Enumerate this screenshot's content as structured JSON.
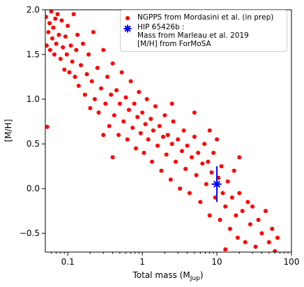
{
  "chart_data": {
    "type": "scatter",
    "ylabel": "[M/H]",
    "xlabel": [
      "Total mass (M",
      "Jup",
      ")"
    ],
    "xlim": [
      0.05,
      100
    ],
    "ylim": [
      -0.71,
      2.0
    ],
    "xscale": "log",
    "xticks": [
      0.1,
      1,
      10,
      100
    ],
    "xminorticks": [
      0.06,
      0.07,
      0.08,
      0.09,
      0.2,
      0.3,
      0.4,
      0.5,
      0.6,
      0.7,
      0.8,
      0.9,
      2,
      3,
      4,
      5,
      6,
      7,
      8,
      9,
      20,
      30,
      40,
      50,
      60,
      70,
      80,
      90
    ],
    "yticks": [
      {
        "value": -0.5,
        "label": "−0.5"
      },
      {
        "value": 0,
        "label": "0.0"
      },
      0.5,
      {
        "value": 1,
        "label": "1.0"
      },
      1.5,
      {
        "value": 2,
        "label": "2.0"
      }
    ],
    "legend": "upper right",
    "series": [
      {
        "name": "NGPPS from Mordasini et al. (in prep)",
        "color": "#ff0000",
        "marker": "dot",
        "x": [
          0.051,
          0.052,
          0.053,
          0.055,
          0.057,
          0.058,
          0.06,
          0.062,
          0.064,
          0.066,
          0.068,
          0.07,
          0.073,
          0.076,
          0.08,
          0.083,
          0.086,
          0.09,
          0.093,
          0.097,
          0.1,
          0.105,
          0.11,
          0.115,
          0.12,
          0.125,
          0.13,
          0.135,
          0.14,
          0.15,
          0.16,
          0.17,
          0.18,
          0.19,
          0.2,
          0.21,
          0.22,
          0.23,
          0.25,
          0.26,
          0.28,
          0.3,
          0.32,
          0.34,
          0.36,
          0.38,
          0.4,
          0.42,
          0.45,
          0.48,
          0.5,
          0.53,
          0.56,
          0.6,
          0.63,
          0.66,
          0.7,
          0.74,
          0.78,
          0.82,
          0.86,
          0.9,
          0.95,
          1.0,
          1.05,
          1.1,
          1.15,
          1.2,
          1.3,
          1.35,
          1.4,
          1.5,
          1.6,
          1.7,
          1.8,
          1.9,
          2.0,
          2.1,
          2.2,
          2.4,
          2.5,
          2.6,
          2.8,
          3.0,
          3.2,
          3.4,
          3.6,
          3.8,
          4.0,
          4.3,
          4.6,
          5.0,
          5.3,
          5.6,
          6.0,
          6.4,
          6.8,
          7.2,
          7.6,
          8.0,
          8.5,
          9.0,
          9.5,
          10.5,
          11,
          11.5,
          12,
          13,
          14,
          15,
          16,
          17,
          18,
          19,
          20,
          22,
          24,
          26,
          28,
          30,
          33,
          36,
          40,
          45,
          50,
          55,
          60,
          65,
          0.3,
          0.4,
          2.5,
          5,
          10,
          20,
          13,
          8
        ],
        "values": [
          1.92,
          1.6,
          0.69,
          1.75,
          1.85,
          1.55,
          1.98,
          1.68,
          1.8,
          1.5,
          1.9,
          1.62,
          1.95,
          1.72,
          1.45,
          1.88,
          1.58,
          1.33,
          1.7,
          1.5,
          1.82,
          1.3,
          1.6,
          1.42,
          1.95,
          1.25,
          1.55,
          1.72,
          1.15,
          1.38,
          1.62,
          1.05,
          1.28,
          1.5,
          0.9,
          1.2,
          1.75,
          1.0,
          1.35,
          0.85,
          1.12,
          1.55,
          0.95,
          1.25,
          0.7,
          1.05,
          1.4,
          0.82,
          1.1,
          0.6,
          0.95,
          1.3,
          0.75,
          1.02,
          0.55,
          0.88,
          1.2,
          0.68,
          0.95,
          0.45,
          0.8,
          1.08,
          0.62,
          0.85,
          0.4,
          0.72,
          1.0,
          0.55,
          0.78,
          0.3,
          0.65,
          0.92,
          0.48,
          0.7,
          0.2,
          0.58,
          0.82,
          0.38,
          0.6,
          0.1,
          0.5,
          0.75,
          0.3,
          0.55,
          0.0,
          0.42,
          0.65,
          0.22,
          0.48,
          -0.05,
          0.35,
          0.58,
          0.15,
          0.4,
          -0.15,
          0.28,
          0.5,
          0.05,
          0.3,
          -0.3,
          0.18,
          0.4,
          -0.1,
          0.12,
          -0.35,
          0.25,
          -0.05,
          -0.2,
          0.08,
          -0.45,
          -0.1,
          0.2,
          -0.3,
          -0.55,
          -0.05,
          -0.25,
          -0.6,
          -0.15,
          -0.4,
          -0.2,
          -0.65,
          -0.35,
          -0.5,
          -0.25,
          -0.6,
          -0.45,
          -0.7,
          -0.55,
          0.6,
          0.35,
          0.95,
          0.85,
          0.55,
          0.35,
          -0.68,
          0.65
        ]
      },
      {
        "name": "HIP 65426b :\nMass from Marleau et al. 2019\n[M/H] from ForMoSA",
        "color": "#0000ff",
        "marker": "star",
        "x": [
          10
        ],
        "values": [
          0.05
        ],
        "yerr": [
          0.2
        ],
        "xerr": [
          1.5
        ]
      }
    ]
  }
}
